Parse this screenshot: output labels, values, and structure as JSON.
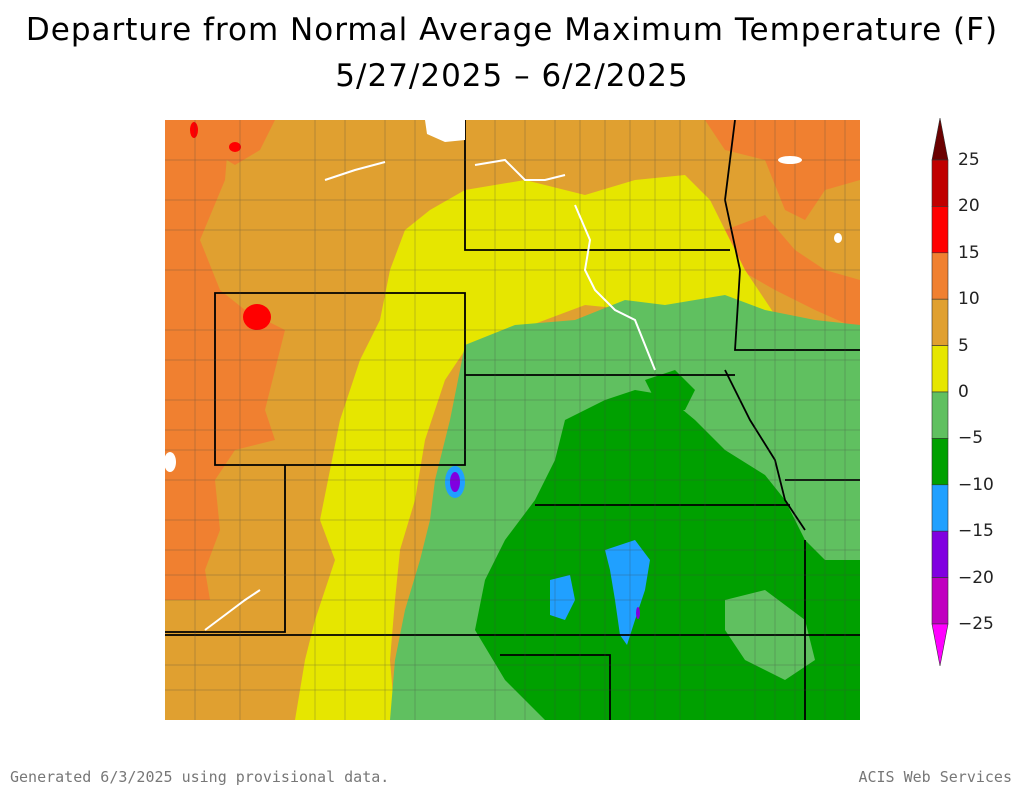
{
  "title": "Departure from Normal Average Maximum Temperature (F)",
  "subtitle": "5/27/2025 – 6/2/2025",
  "legend": {
    "labels": [
      "25",
      "20",
      "15",
      "10",
      "5",
      "0",
      "−5",
      "−10",
      "−15",
      "−20",
      "−25"
    ],
    "colors": [
      "#6b0000",
      "#c00000",
      "#ff0000",
      "#f08030",
      "#e0a030",
      "#e6e600",
      "#60c060",
      "#00a000",
      "#20a0ff",
      "#8000e0",
      "#c000c0",
      "#ff00ff"
    ]
  },
  "footer": {
    "generated": "Generated 6/3/2025 using provisional data.",
    "credit": "ACIS Web Services"
  }
}
